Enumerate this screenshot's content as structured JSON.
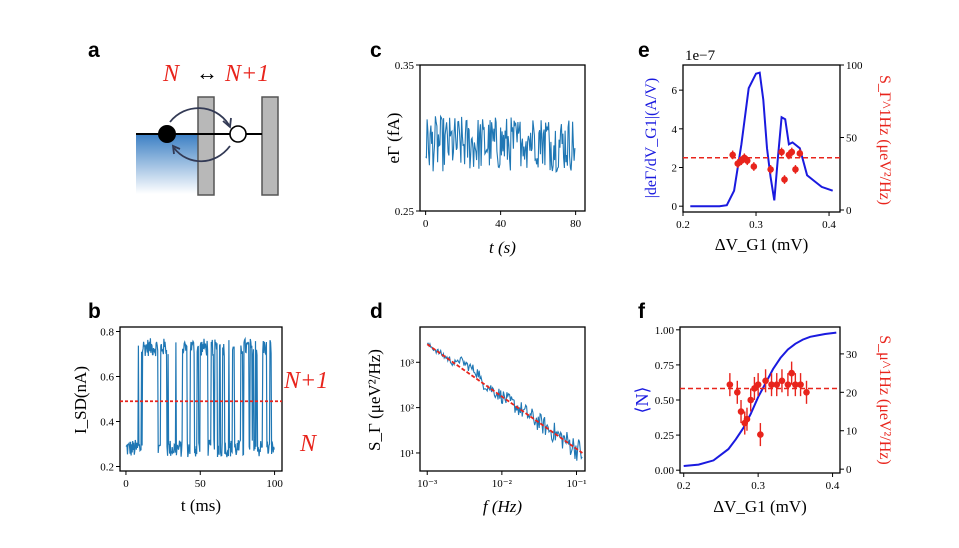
{
  "colors": {
    "blue": "#1f77b4",
    "red": "#e8241c",
    "deepblue": "#1a1adf",
    "axis": "#000000"
  },
  "panels": {
    "a": {
      "letter": "a",
      "title_left": "N",
      "title_arrow": "↔",
      "title_right": "N+1"
    },
    "b": {
      "letter": "b",
      "ylabel": "I_SD(nA)",
      "xlabel": "t (ms)",
      "label_upper": "N+1",
      "label_lower": "N"
    },
    "c": {
      "letter": "c",
      "ylabel": "eΓ (fA)",
      "xlabel": "t (s)"
    },
    "d": {
      "letter": "d",
      "ylabel": "S_Γ (μeV²/Hz)",
      "xlabel": "f (Hz)"
    },
    "e": {
      "letter": "e",
      "ylabel_left": "|deΓ/dV_G1|(A/V)",
      "ylabel_right": "S_Γ^1Hz (μeV²/Hz)",
      "xlabel": "ΔV_G1 (mV)",
      "offset": "1e−7"
    },
    "f": {
      "letter": "f",
      "ylabel_left": "⟨N⟩",
      "ylabel_right": "S_μ^1Hz (μeV²/Hz)",
      "xlabel": "ΔV_G1 (mV)"
    }
  },
  "chart_data": [
    {
      "id": "b",
      "type": "line",
      "x_range": [
        0,
        100
      ],
      "ylim": [
        0.18,
        0.82
      ],
      "x_ticks": [
        "0",
        "50",
        "100"
      ],
      "y_ticks": [
        "0.2",
        "0.4",
        "0.6",
        "0.8"
      ],
      "threshold": 0.49,
      "levels": {
        "low": 0.28,
        "high": 0.73
      },
      "series": [
        {
          "color": "#1f77b4",
          "style": "random telegraph signal"
        }
      ]
    },
    {
      "id": "c",
      "type": "line",
      "x_range": [
        0,
        80
      ],
      "ylim": [
        0.25,
        0.35
      ],
      "x_ticks": [
        "0",
        "40",
        "80"
      ],
      "y_ticks": [
        "0.25",
        "0.35"
      ],
      "mean": 0.296,
      "spread": 0.012
    },
    {
      "id": "d",
      "type": "line",
      "scale": "log-log",
      "x_range": [
        0.0008,
        0.13
      ],
      "ylim": [
        4,
        6000
      ],
      "x_ticks": [
        "10⁻³",
        "10⁻²",
        "10⁻¹"
      ],
      "y_ticks": [
        "10¹",
        "10²",
        "10³"
      ],
      "fit": {
        "x": [
          0.001,
          0.12
        ],
        "y": [
          2500,
          10
        ]
      }
    },
    {
      "id": "e",
      "type": "line+scatter",
      "x_range": [
        0.2,
        0.415
      ],
      "ylim_left": [
        -0.3,
        7.3
      ],
      "ylim_right": [
        0,
        100
      ],
      "x_ticks": [
        "0.2",
        "0.3",
        "0.4"
      ],
      "y_ticks_left": [
        "0",
        "2",
        "4",
        "6"
      ],
      "y_ticks_right": [
        "0",
        "50",
        "100"
      ],
      "line": {
        "x": [
          0.21,
          0.25,
          0.26,
          0.27,
          0.28,
          0.29,
          0.3,
          0.305,
          0.31,
          0.315,
          0.32,
          0.325,
          0.33,
          0.335,
          0.34,
          0.345,
          0.35,
          0.36,
          0.37,
          0.38,
          0.39,
          0.405
        ],
        "y": [
          0,
          0,
          0.05,
          0.8,
          3.2,
          6.1,
          6.85,
          6.9,
          5.5,
          3.0,
          1.5,
          0.3,
          2.5,
          4.6,
          4.5,
          3.2,
          3.3,
          3.0,
          1.6,
          1.3,
          1.0,
          0.8
        ]
      },
      "points": {
        "x": [
          0.268,
          0.275,
          0.28,
          0.284,
          0.288,
          0.297,
          0.32,
          0.335,
          0.339,
          0.345,
          0.349,
          0.354,
          0.36
        ],
        "y": [
          38,
          32,
          34,
          36,
          34,
          30,
          28,
          40,
          21,
          38,
          40,
          28,
          39
        ],
        "err": [
          3,
          3,
          3,
          3,
          3,
          3,
          3,
          3,
          3,
          3,
          3,
          3,
          3
        ]
      },
      "hline": 36
    },
    {
      "id": "f",
      "type": "line+scatter",
      "x_range": [
        0.195,
        0.41
      ],
      "ylim_left": [
        -0.02,
        1.02
      ],
      "ylim_right": [
        -1,
        37
      ],
      "x_ticks": [
        "0.2",
        "0.3",
        "0.4"
      ],
      "y_ticks_left": [
        "0.00",
        "0.25",
        "0.50",
        "0.75",
        "1.00"
      ],
      "y_ticks_right": [
        "0",
        "10",
        "20",
        "30"
      ],
      "line": {
        "x": [
          0.2,
          0.22,
          0.24,
          0.26,
          0.27,
          0.28,
          0.29,
          0.3,
          0.31,
          0.32,
          0.33,
          0.34,
          0.35,
          0.36,
          0.37,
          0.38,
          0.39,
          0.405
        ],
        "y": [
          0.03,
          0.04,
          0.07,
          0.15,
          0.22,
          0.3,
          0.4,
          0.52,
          0.62,
          0.72,
          0.8,
          0.86,
          0.9,
          0.93,
          0.95,
          0.96,
          0.97,
          0.98
        ]
      },
      "points": {
        "x": [
          0.262,
          0.272,
          0.277,
          0.282,
          0.285,
          0.29,
          0.295,
          0.3,
          0.303,
          0.31,
          0.318,
          0.325,
          0.332,
          0.34,
          0.345,
          0.35,
          0.357,
          0.365
        ],
        "y": [
          22,
          20,
          15,
          12,
          13,
          18,
          21,
          22,
          9,
          23,
          22,
          22,
          23,
          22,
          25,
          22,
          22,
          20
        ],
        "err": [
          3,
          3,
          3,
          3,
          3,
          3,
          3,
          3,
          3,
          3,
          3,
          3,
          3,
          3,
          3,
          3,
          3,
          3
        ]
      },
      "hline": 21
    }
  ]
}
